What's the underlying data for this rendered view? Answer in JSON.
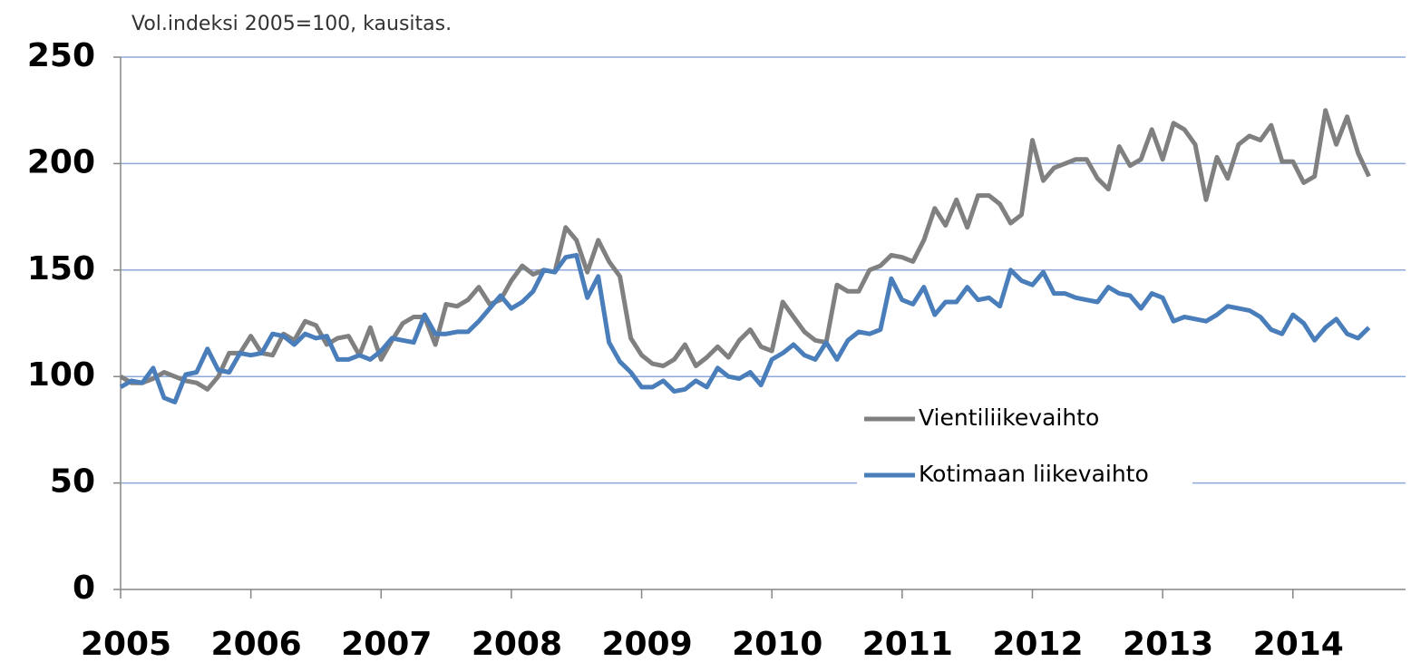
{
  "chart_data": {
    "type": "line",
    "title": "Vol.indeksi 2005=100, kausitas.",
    "categories": [
      "2005",
      null,
      null,
      null,
      null,
      null,
      null,
      null,
      null,
      null,
      null,
      null,
      "2006",
      null,
      null,
      null,
      null,
      null,
      null,
      null,
      null,
      null,
      null,
      null,
      "2007",
      null,
      null,
      null,
      null,
      null,
      null,
      null,
      null,
      null,
      null,
      null,
      "2008",
      null,
      null,
      null,
      null,
      null,
      null,
      null,
      null,
      null,
      null,
      null,
      "2009",
      null,
      null,
      null,
      null,
      null,
      null,
      null,
      null,
      null,
      null,
      null,
      "2010",
      null,
      null,
      null,
      null,
      null,
      null,
      null,
      null,
      null,
      null,
      null,
      "2011",
      null,
      null,
      null,
      null,
      null,
      null,
      null,
      null,
      null,
      null,
      null,
      "2012",
      null,
      null,
      null,
      null,
      null,
      null,
      null,
      null,
      null,
      null,
      null,
      "2013",
      null,
      null,
      null,
      null,
      null,
      null,
      null,
      null,
      null,
      null,
      null,
      "2014",
      null,
      null,
      null,
      null,
      null,
      null,
      null
    ],
    "series": [
      {
        "name": "Vientiliikevaihto",
        "color": "#808080",
        "values": [
          100,
          97,
          97,
          99,
          102,
          100,
          98,
          97,
          94,
          100,
          111,
          111,
          119,
          111,
          110,
          120,
          117,
          126,
          124,
          115,
          118,
          119,
          110,
          123,
          108,
          117,
          125,
          128,
          128,
          115,
          134,
          133,
          136,
          142,
          134,
          136,
          145,
          152,
          148,
          150,
          149,
          170,
          164,
          149,
          164,
          154,
          147,
          118,
          110,
          106,
          105,
          108,
          115,
          105,
          109,
          114,
          109,
          117,
          122,
          114,
          112,
          135,
          128,
          121,
          117,
          116,
          143,
          140,
          140,
          150,
          152,
          157,
          156,
          154,
          164,
          179,
          171,
          183,
          170,
          185,
          185,
          181,
          172,
          176,
          211,
          192,
          198,
          200,
          202,
          202,
          193,
          188,
          208,
          199,
          202,
          216,
          202,
          219,
          216,
          209,
          183,
          203,
          193,
          209,
          213,
          211,
          218,
          201,
          201,
          191,
          194,
          225,
          209,
          222,
          205,
          194
        ]
      },
      {
        "name": "Kotimaan liikevaihto",
        "color": "#4a7ebb",
        "values": [
          95,
          98,
          97,
          104,
          90,
          88,
          101,
          102,
          113,
          103,
          102,
          111,
          110,
          111,
          120,
          119,
          115,
          120,
          118,
          119,
          108,
          108,
          110,
          108,
          112,
          118,
          117,
          116,
          129,
          120,
          120,
          121,
          121,
          126,
          132,
          138,
          132,
          135,
          140,
          150,
          149,
          156,
          157,
          137,
          147,
          116,
          107,
          102,
          95,
          95,
          98,
          93,
          94,
          98,
          95,
          104,
          100,
          99,
          102,
          96,
          108,
          111,
          115,
          110,
          108,
          116,
          108,
          117,
          121,
          120,
          122,
          146,
          136,
          134,
          142,
          129,
          135,
          135,
          142,
          136,
          137,
          133,
          150,
          145,
          143,
          149,
          139,
          139,
          137,
          136,
          135,
          142,
          139,
          138,
          132,
          139,
          137,
          126,
          128,
          127,
          126,
          129,
          133,
          132,
          131,
          128,
          122,
          120,
          129,
          125,
          117,
          123,
          127,
          120,
          118,
          123
        ]
      }
    ],
    "ylim": [
      0,
      250
    ],
    "yticks": [
      0,
      50,
      100,
      150,
      200,
      250
    ],
    "grid": true,
    "legend": "right"
  }
}
